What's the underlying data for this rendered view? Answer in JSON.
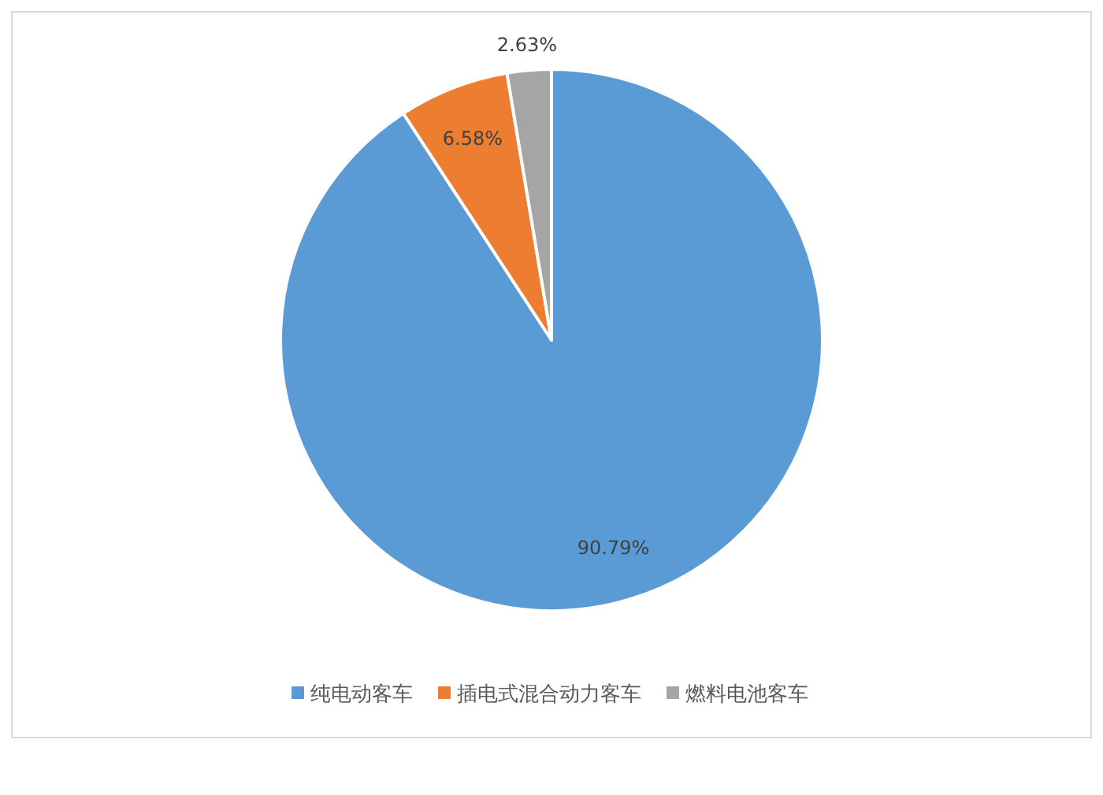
{
  "chart_data": {
    "type": "pie",
    "categories": [
      "纯电动客车",
      "插电式混合动力客车",
      "燃料电池客车"
    ],
    "values": [
      90.79,
      6.58,
      2.63
    ],
    "value_labels": [
      "90.79%",
      "6.58%",
      "2.63%"
    ],
    "colors": [
      "#5b9bd5",
      "#ed7d31",
      "#a5a5a5"
    ],
    "legend": "bottom"
  }
}
